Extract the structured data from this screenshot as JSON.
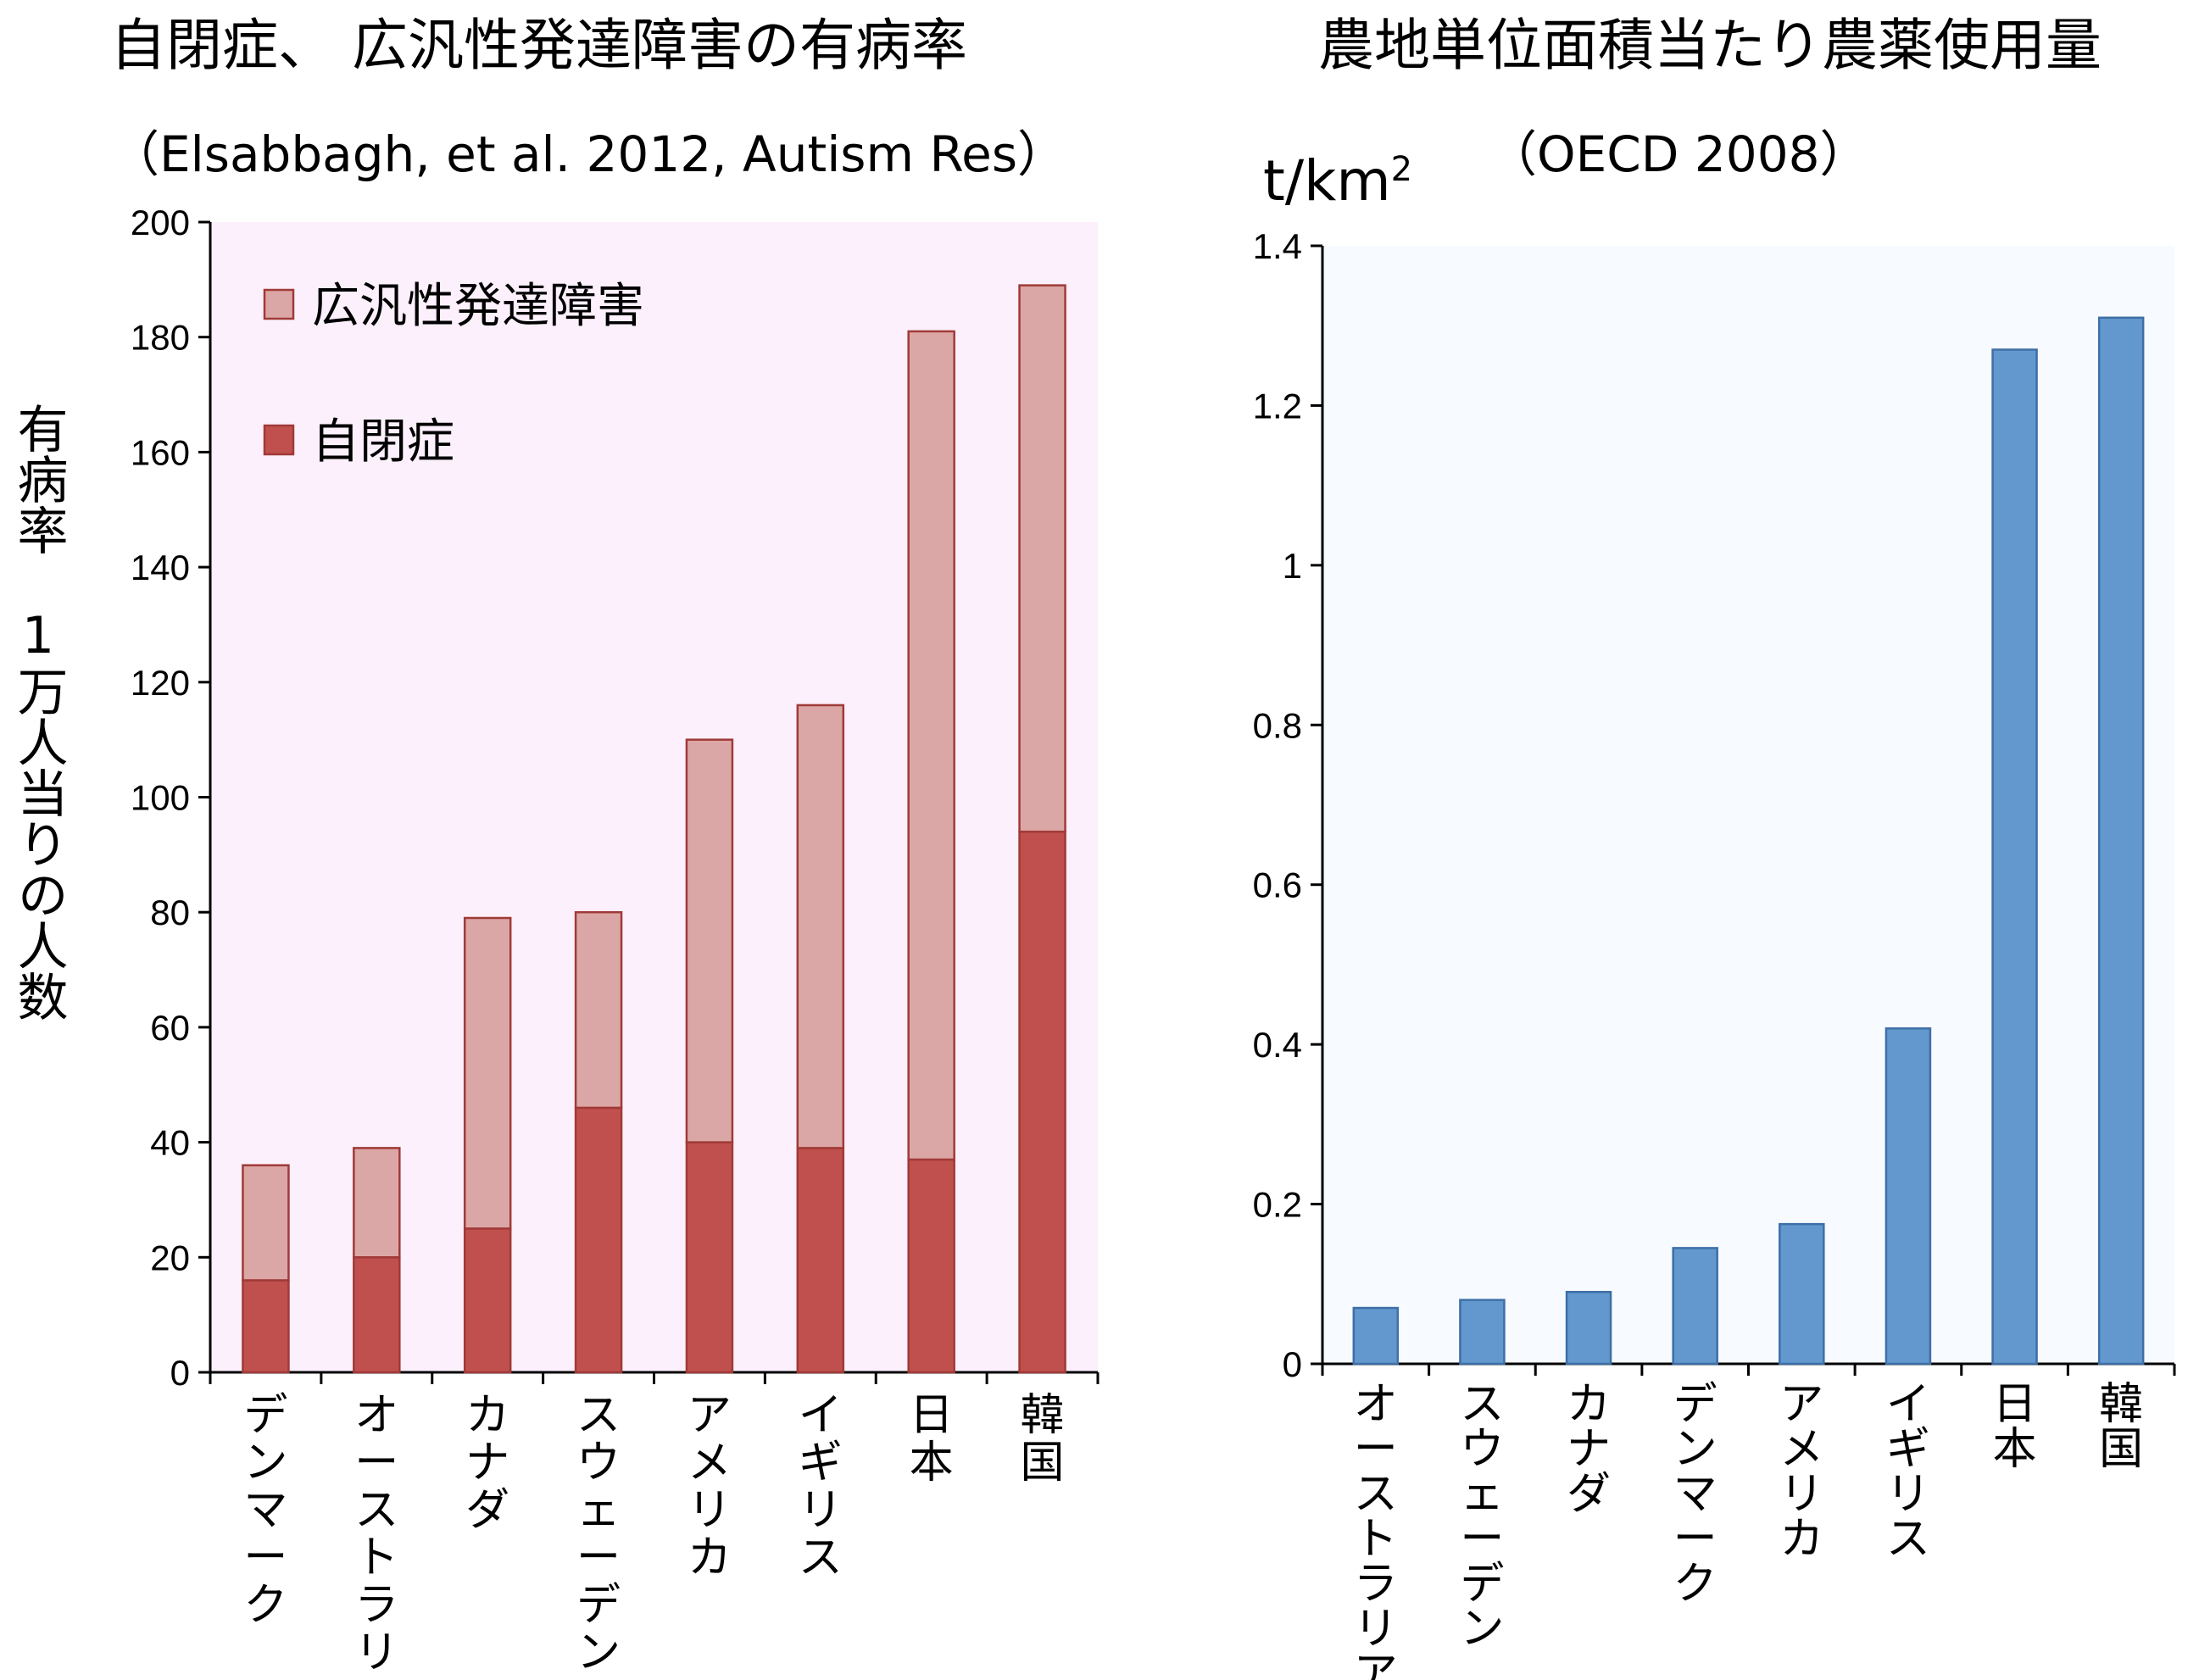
{
  "chart_data": [
    {
      "type": "bar",
      "stacked": true,
      "title": "自閉症、 広汎性発達障害の有病率",
      "subtitle": "（Elsabbagh, et al. 2012, Autism Res）",
      "ylabel": "有病率　1万人当りの人数",
      "xlabel": "",
      "categories": [
        "デンマーク",
        "オーストラリア",
        "カナダ",
        "スウェーデン",
        "アメリカ",
        "イギリス",
        "日本",
        "韓国"
      ],
      "series": [
        {
          "name": "自閉症",
          "color": "#C0504D",
          "values": [
            16,
            20,
            25,
            46,
            40,
            39,
            37,
            94
          ]
        },
        {
          "name": "広汎性発達障害",
          "color": "#DBA7A6",
          "values": [
            20,
            19,
            54,
            34,
            70,
            77,
            144,
            95
          ]
        }
      ],
      "totals": [
        36,
        39,
        79,
        80,
        110,
        116,
        181,
        189
      ],
      "ylim": [
        0,
        200
      ],
      "yticks": [
        0,
        20,
        40,
        60,
        80,
        100,
        120,
        140,
        160,
        180,
        200
      ],
      "legend_position": "top-left",
      "plot_background": "#FBF0FB"
    },
    {
      "type": "bar",
      "title": "農地単位面積当たり農薬使用量",
      "subtitle": "（OECD 2008）",
      "unit_label": "t/km2",
      "xlabel": "",
      "ylabel": "",
      "categories": [
        "オーストラリア",
        "スウェーデン",
        "カナダ",
        "デンマーク",
        "アメリカ",
        "イギリス",
        "日本",
        "韓国"
      ],
      "values": [
        0.07,
        0.08,
        0.09,
        0.145,
        0.175,
        0.42,
        1.27,
        1.31
      ],
      "color": "#6298CE",
      "ylim": [
        0,
        1.4
      ],
      "yticks": [
        "0",
        "0.2",
        "0.4",
        "0.6",
        "0.8",
        "1",
        "1.2",
        "1.4"
      ],
      "plot_background": "#F7FBFF"
    }
  ]
}
